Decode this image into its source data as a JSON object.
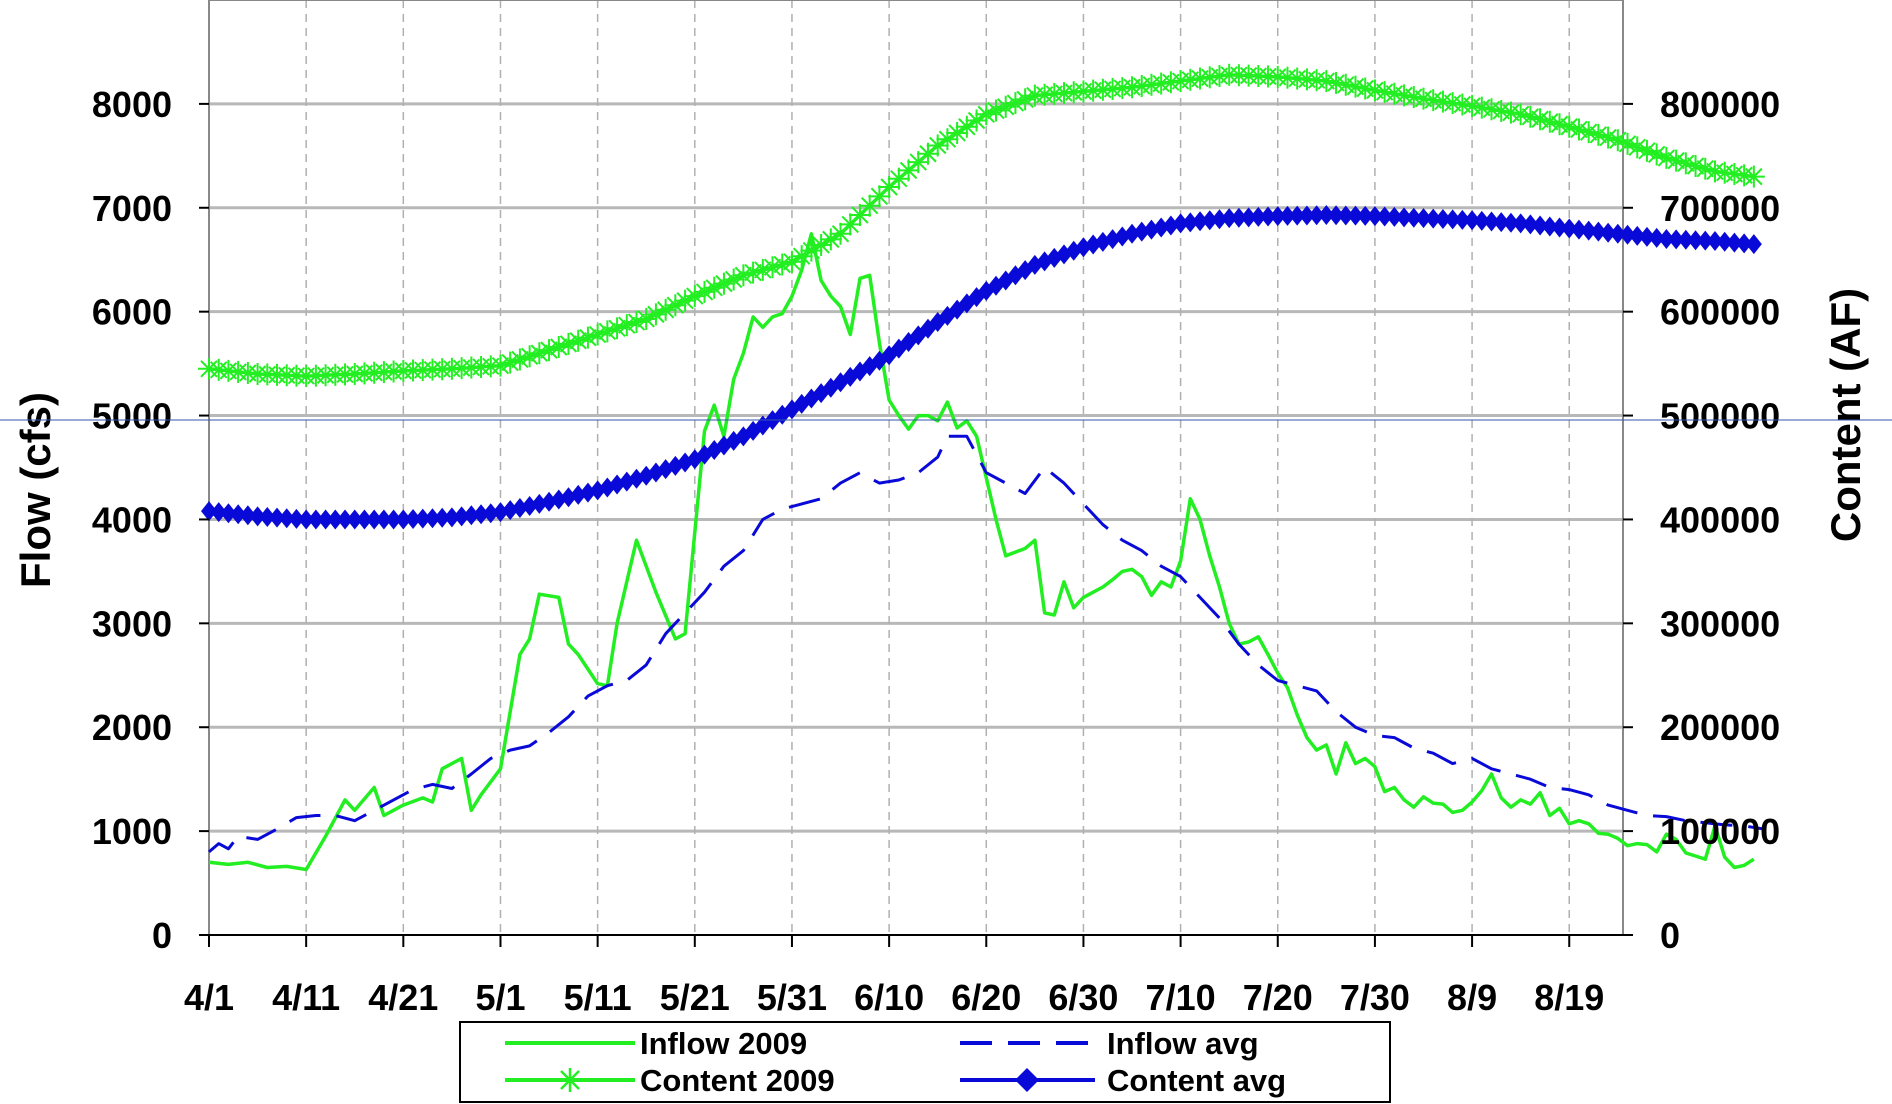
{
  "chart_data": {
    "type": "line",
    "ylabel_left": "Flow (cfs)",
    "ylabel_right": "Content (AF)",
    "ylim_left": [
      0,
      9000
    ],
    "ylim_right": [
      0,
      900000
    ],
    "yticks_left": [
      "0",
      "1000",
      "2000",
      "3000",
      "4000",
      "5000",
      "6000",
      "7000",
      "8000"
    ],
    "yticks_right": [
      "0",
      "100000",
      "200000",
      "300000",
      "400000",
      "500000",
      "600000",
      "700000",
      "800000"
    ],
    "xticks": [
      "4/1",
      "4/11",
      "4/21",
      "5/1",
      "5/11",
      "5/21",
      "5/31",
      "6/10",
      "6/20",
      "6/30",
      "7/10",
      "7/20",
      "7/30",
      "8/9",
      "8/19"
    ],
    "x_range_days": [
      0,
      146
    ],
    "grid": "horizontal solid, vertical dashed",
    "legend_position": "bottom",
    "colors": {
      "green": "#22ee22",
      "blue": "#0a0ad8"
    },
    "series": [
      {
        "name": "Inflow 2009",
        "axis": "left",
        "style": "solid-green",
        "points": [
          [
            0,
            700
          ],
          [
            2,
            680
          ],
          [
            4,
            700
          ],
          [
            6,
            650
          ],
          [
            8,
            660
          ],
          [
            10,
            630
          ],
          [
            12,
            950
          ],
          [
            14,
            1300
          ],
          [
            15,
            1200
          ],
          [
            17,
            1420
          ],
          [
            18,
            1150
          ],
          [
            20,
            1250
          ],
          [
            22,
            1320
          ],
          [
            23,
            1280
          ],
          [
            24,
            1600
          ],
          [
            26,
            1700
          ],
          [
            27,
            1200
          ],
          [
            28,
            1350
          ],
          [
            30,
            1600
          ],
          [
            32,
            2700
          ],
          [
            33,
            2850
          ],
          [
            34,
            3280
          ],
          [
            36,
            3250
          ],
          [
            37,
            2800
          ],
          [
            38,
            2700
          ],
          [
            40,
            2420
          ],
          [
            41,
            2400
          ],
          [
            42,
            3000
          ],
          [
            44,
            3800
          ],
          [
            46,
            3300
          ],
          [
            48,
            2850
          ],
          [
            49,
            2900
          ],
          [
            51,
            4850
          ],
          [
            52,
            5100
          ],
          [
            53,
            4800
          ],
          [
            54,
            5350
          ],
          [
            55,
            5600
          ],
          [
            56,
            5950
          ],
          [
            57,
            5850
          ],
          [
            58,
            5950
          ],
          [
            59,
            5980
          ],
          [
            60,
            6150
          ],
          [
            61,
            6400
          ],
          [
            62,
            6750
          ],
          [
            63,
            6300
          ],
          [
            64,
            6150
          ],
          [
            65,
            6050
          ],
          [
            66,
            5780
          ],
          [
            67,
            6320
          ],
          [
            68,
            6350
          ],
          [
            69,
            5700
          ],
          [
            70,
            5150
          ],
          [
            71,
            5000
          ],
          [
            72,
            4870
          ],
          [
            73,
            5000
          ],
          [
            74,
            5000
          ],
          [
            75,
            4950
          ],
          [
            76,
            5130
          ],
          [
            77,
            4880
          ],
          [
            78,
            4950
          ],
          [
            79,
            4800
          ],
          [
            80,
            4400
          ],
          [
            81,
            4000
          ],
          [
            82,
            3650
          ],
          [
            84,
            3720
          ],
          [
            85,
            3800
          ],
          [
            86,
            3100
          ],
          [
            87,
            3080
          ],
          [
            88,
            3400
          ],
          [
            89,
            3150
          ],
          [
            90,
            3250
          ],
          [
            91,
            3300
          ],
          [
            92,
            3350
          ],
          [
            93,
            3420
          ],
          [
            94,
            3500
          ],
          [
            95,
            3520
          ],
          [
            96,
            3450
          ],
          [
            97,
            3270
          ],
          [
            98,
            3400
          ],
          [
            99,
            3350
          ],
          [
            100,
            3600
          ],
          [
            101,
            4200
          ],
          [
            102,
            4000
          ],
          [
            103,
            3650
          ],
          [
            104,
            3350
          ],
          [
            105,
            3000
          ],
          [
            106,
            2800
          ],
          [
            107,
            2820
          ],
          [
            108,
            2870
          ],
          [
            109,
            2700
          ],
          [
            110,
            2520
          ],
          [
            111,
            2380
          ],
          [
            112,
            2120
          ],
          [
            113,
            1900
          ],
          [
            114,
            1780
          ],
          [
            115,
            1830
          ],
          [
            116,
            1550
          ],
          [
            117,
            1850
          ],
          [
            118,
            1650
          ],
          [
            119,
            1700
          ],
          [
            120,
            1620
          ],
          [
            121,
            1380
          ],
          [
            122,
            1420
          ],
          [
            123,
            1300
          ],
          [
            124,
            1230
          ],
          [
            125,
            1330
          ],
          [
            126,
            1270
          ],
          [
            127,
            1260
          ],
          [
            128,
            1180
          ],
          [
            129,
            1200
          ],
          [
            130,
            1280
          ],
          [
            131,
            1390
          ],
          [
            132,
            1550
          ],
          [
            133,
            1320
          ],
          [
            134,
            1230
          ],
          [
            135,
            1300
          ],
          [
            136,
            1260
          ],
          [
            137,
            1370
          ],
          [
            138,
            1150
          ],
          [
            139,
            1220
          ],
          [
            140,
            1070
          ],
          [
            141,
            1100
          ],
          [
            142,
            1070
          ],
          [
            143,
            980
          ],
          [
            144,
            970
          ],
          [
            145,
            930
          ],
          [
            146,
            860
          ],
          [
            147,
            880
          ],
          [
            148,
            870
          ],
          [
            149,
            800
          ],
          [
            150,
            970
          ],
          [
            151,
            920
          ],
          [
            152,
            790
          ],
          [
            153,
            760
          ],
          [
            154,
            730
          ],
          [
            155,
            1050
          ],
          [
            156,
            750
          ],
          [
            157,
            650
          ],
          [
            158,
            670
          ],
          [
            159,
            730
          ]
        ]
      },
      {
        "name": "Inflow avg",
        "axis": "left",
        "style": "dashed-blue",
        "points": [
          [
            0,
            800
          ],
          [
            1,
            880
          ],
          [
            2,
            830
          ],
          [
            3,
            950
          ],
          [
            5,
            920
          ],
          [
            7,
            1020
          ],
          [
            9,
            1130
          ],
          [
            11,
            1150
          ],
          [
            13,
            1150
          ],
          [
            15,
            1100
          ],
          [
            17,
            1200
          ],
          [
            19,
            1300
          ],
          [
            21,
            1400
          ],
          [
            23,
            1450
          ],
          [
            25,
            1410
          ],
          [
            27,
            1550
          ],
          [
            29,
            1700
          ],
          [
            31,
            1780
          ],
          [
            33,
            1820
          ],
          [
            35,
            1950
          ],
          [
            37,
            2100
          ],
          [
            39,
            2300
          ],
          [
            41,
            2400
          ],
          [
            43,
            2450
          ],
          [
            45,
            2600
          ],
          [
            47,
            2900
          ],
          [
            49,
            3100
          ],
          [
            51,
            3300
          ],
          [
            53,
            3550
          ],
          [
            55,
            3700
          ],
          [
            57,
            4000
          ],
          [
            59,
            4100
          ],
          [
            61,
            4150
          ],
          [
            63,
            4200
          ],
          [
            65,
            4350
          ],
          [
            67,
            4450
          ],
          [
            69,
            4350
          ],
          [
            71,
            4380
          ],
          [
            73,
            4450
          ],
          [
            75,
            4600
          ],
          [
            76,
            4800
          ],
          [
            78,
            4800
          ],
          [
            80,
            4450
          ],
          [
            82,
            4350
          ],
          [
            84,
            4250
          ],
          [
            86,
            4500
          ],
          [
            88,
            4350
          ],
          [
            90,
            4150
          ],
          [
            92,
            3950
          ],
          [
            94,
            3800
          ],
          [
            96,
            3700
          ],
          [
            98,
            3550
          ],
          [
            100,
            3450
          ],
          [
            102,
            3250
          ],
          [
            104,
            3050
          ],
          [
            106,
            2800
          ],
          [
            108,
            2600
          ],
          [
            110,
            2450
          ],
          [
            112,
            2400
          ],
          [
            114,
            2350
          ],
          [
            116,
            2150
          ],
          [
            118,
            2000
          ],
          [
            120,
            1920
          ],
          [
            122,
            1900
          ],
          [
            124,
            1800
          ],
          [
            126,
            1750
          ],
          [
            128,
            1650
          ],
          [
            130,
            1700
          ],
          [
            132,
            1600
          ],
          [
            134,
            1550
          ],
          [
            136,
            1500
          ],
          [
            138,
            1420
          ],
          [
            140,
            1400
          ],
          [
            142,
            1350
          ],
          [
            144,
            1250
          ],
          [
            146,
            1200
          ],
          [
            148,
            1150
          ],
          [
            150,
            1140
          ],
          [
            152,
            1100
          ],
          [
            154,
            1080
          ],
          [
            156,
            1060
          ],
          [
            158,
            1050
          ],
          [
            160,
            1020
          ]
        ]
      },
      {
        "name": "Content 2009",
        "axis": "right",
        "style": "green-star",
        "points": [
          [
            0,
            545000
          ],
          [
            5,
            540000
          ],
          [
            10,
            538000
          ],
          [
            15,
            540000
          ],
          [
            20,
            543000
          ],
          [
            25,
            545000
          ],
          [
            30,
            548000
          ],
          [
            35,
            563000
          ],
          [
            40,
            578000
          ],
          [
            45,
            593000
          ],
          [
            50,
            615000
          ],
          [
            55,
            635000
          ],
          [
            60,
            648000
          ],
          [
            65,
            675000
          ],
          [
            70,
            720000
          ],
          [
            75,
            760000
          ],
          [
            80,
            790000
          ],
          [
            85,
            808000
          ],
          [
            90,
            812000
          ],
          [
            95,
            816000
          ],
          [
            100,
            822000
          ],
          [
            105,
            828000
          ],
          [
            110,
            826000
          ],
          [
            115,
            822000
          ],
          [
            120,
            813000
          ],
          [
            125,
            805000
          ],
          [
            130,
            798000
          ],
          [
            135,
            790000
          ],
          [
            140,
            778000
          ],
          [
            145,
            765000
          ],
          [
            150,
            748000
          ],
          [
            155,
            735000
          ],
          [
            159,
            730000
          ]
        ]
      },
      {
        "name": "Content avg",
        "axis": "right",
        "style": "blue-diamond",
        "points": [
          [
            0,
            408000
          ],
          [
            5,
            403000
          ],
          [
            10,
            400000
          ],
          [
            15,
            400000
          ],
          [
            20,
            400000
          ],
          [
            25,
            402000
          ],
          [
            30,
            407000
          ],
          [
            35,
            417000
          ],
          [
            40,
            428000
          ],
          [
            45,
            442000
          ],
          [
            50,
            458000
          ],
          [
            55,
            480000
          ],
          [
            60,
            506000
          ],
          [
            65,
            532000
          ],
          [
            70,
            558000
          ],
          [
            75,
            590000
          ],
          [
            80,
            620000
          ],
          [
            85,
            645000
          ],
          [
            90,
            662000
          ],
          [
            95,
            675000
          ],
          [
            100,
            685000
          ],
          [
            105,
            690000
          ],
          [
            110,
            692000
          ],
          [
            115,
            693000
          ],
          [
            120,
            692000
          ],
          [
            125,
            690000
          ],
          [
            130,
            688000
          ],
          [
            135,
            685000
          ],
          [
            140,
            680000
          ],
          [
            145,
            675000
          ],
          [
            150,
            670000
          ],
          [
            155,
            668000
          ],
          [
            159,
            665000
          ]
        ]
      }
    ]
  }
}
